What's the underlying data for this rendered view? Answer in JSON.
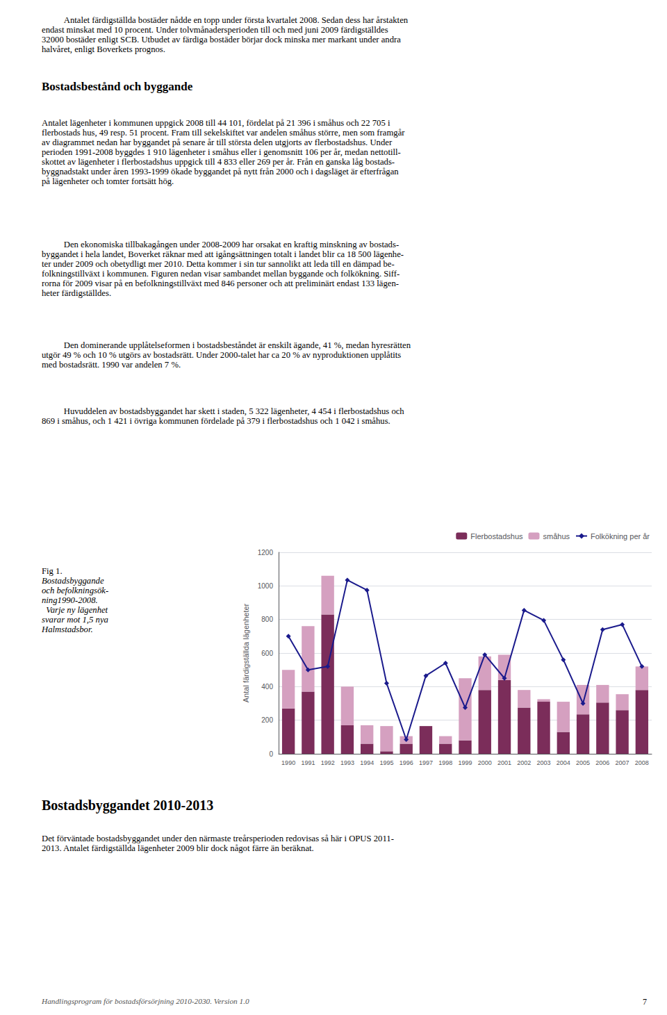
{
  "text_top": [
    "Antalet färdigställda bostäder nådde en topp under första kvartalet 2008. Sedan dess har årstakten",
    "endast minskat med 10 procent. Under tolvmånadersperioden till och med juni 2009 färdigställdes",
    "32000 bostäder enligt SCB. Utbudet av färdiga bostäder börjar dock minska mer markant under andra",
    "halvåret, enligt Boverkets prognos."
  ],
  "section_title1": "Bostadsbestånd och byggande",
  "body_para1": [
    "Antalet lägenheter i kommunen uppgick 2008 till 44 101, fördelat på 21 396 i småhus och 22 705 i",
    "flerbostads hus, 49 resp. 51 procent. Fram till sekelskiftet var andelen småhus större, men som framgår",
    "av diagrammet nedan har byggandet på senare år till största delen utgjorts av flerbostadshus. Under",
    "perioden 1991-2008 byggdes 1 910 lägenheter i småhus eller i genomsnitt 106 per år, medan nettotill-",
    "skottet av lägenheter i flerbostadshus uppgick till 4 833 eller 269 per år. Från en ganska låg bostads-",
    "byggnadstakt under åren 1993-1999 ökade byggandet på nytt från 2000 och i dagsläget är efterfrågan",
    "på lägenheter och tomter fortsätt hög."
  ],
  "body_para2": [
    "Den ekonomiska tillbakagången under 2008-2009 har orsakat en kraftig minskning av bostads-",
    "byggandet i hela landet, Boverket räknar med att igångsättningen totalt i landet blir ca 18 500 lägenhe-",
    "ter under 2009 och obetydligt mer 2010. Detta kommer i sin tur sannolikt att leda till en dämpad be-",
    "folkningstillväxt i kommunen. Figuren nedan visar sambandet mellan byggande och folkökning. Siff-",
    "rorna för 2009 visar på en befolkningstillväxt med 846 personer och att preliminärt endast 133 lägen-",
    "heter färdigställdes."
  ],
  "body_para3": [
    "Den dominerande upplåtelseformen i bostadsbeståndet är enskilt ägande, 41 %, medan hyresrätten",
    "utgör 49 % och 10 % utgörs av bostadsrätt. Under 2000-talet har ca 20 % av nyproduktionen upplåtits",
    "med bostadsrätt. 1990 var andelen 7 %."
  ],
  "body_para4": [
    "Huvuddelen av bostadsbyggandet har skett i staden, 5 322 lägenheter, 4 454 i flerbostadshus och",
    "869 i småhus, och 1 421 i övriga kommunen fördelade på 379 i flerbostadshus och 1 042 i småhus."
  ],
  "fig_caption": [
    "Fig 1.",
    "Bostadsbyggande",
    "och befolkningsök-",
    "ning1990-2008.",
    "  Varje ny lägenhet",
    "svarar mot 1,5 nya",
    "Halmstadsbor."
  ],
  "section_title2": "Bostadsbyggandet 2010-2013",
  "body_para5": [
    "Det förväntade bostadsbyggandet under den närmaste treårsperioden redovisas så här i OPUS 2011-",
    "2013. Antalet färdigställda lägenheter 2009 blir dock något färre än beräknat."
  ],
  "footer": "Handlingsprogram för bostadsförsörjning 2010-2030. Version 1.0",
  "page_num": "7",
  "chart_data": {
    "type": "bar",
    "categories": [
      "1990",
      "1991",
      "1992",
      "1993",
      "1994",
      "1995",
      "1996",
      "1997",
      "1998",
      "1999",
      "2000",
      "2001",
      "2002",
      "2003",
      "2004",
      "2005",
      "2006",
      "2007",
      "2008"
    ],
    "series": [
      {
        "name": "Flerbostadshus",
        "type": "bar",
        "color": "#7B2D5A",
        "values": [
          270,
          370,
          830,
          170,
          60,
          15,
          60,
          165,
          60,
          80,
          380,
          440,
          275,
          310,
          130,
          235,
          305,
          260,
          380
        ]
      },
      {
        "name": "småhus",
        "type": "bar",
        "color": "#D5A0C0",
        "values": [
          230,
          390,
          230,
          230,
          110,
          150,
          45,
          0,
          45,
          370,
          200,
          150,
          105,
          15,
          180,
          175,
          105,
          95,
          140
        ]
      },
      {
        "name": "Folkökning per år",
        "type": "line",
        "color": "#1a1a8c",
        "marker": "diamond",
        "values": [
          700,
          500,
          520,
          1035,
          975,
          420,
          85,
          465,
          540,
          275,
          590,
          450,
          855,
          795,
          560,
          300,
          740,
          770,
          520
        ]
      }
    ],
    "stacked": true,
    "ylabel": "Antal färdigställda lägenheter",
    "ylim": [
      0,
      1200
    ],
    "yticks": [
      0,
      200,
      400,
      600,
      800,
      1000,
      1200
    ],
    "grid": true,
    "legend": "upper right"
  }
}
